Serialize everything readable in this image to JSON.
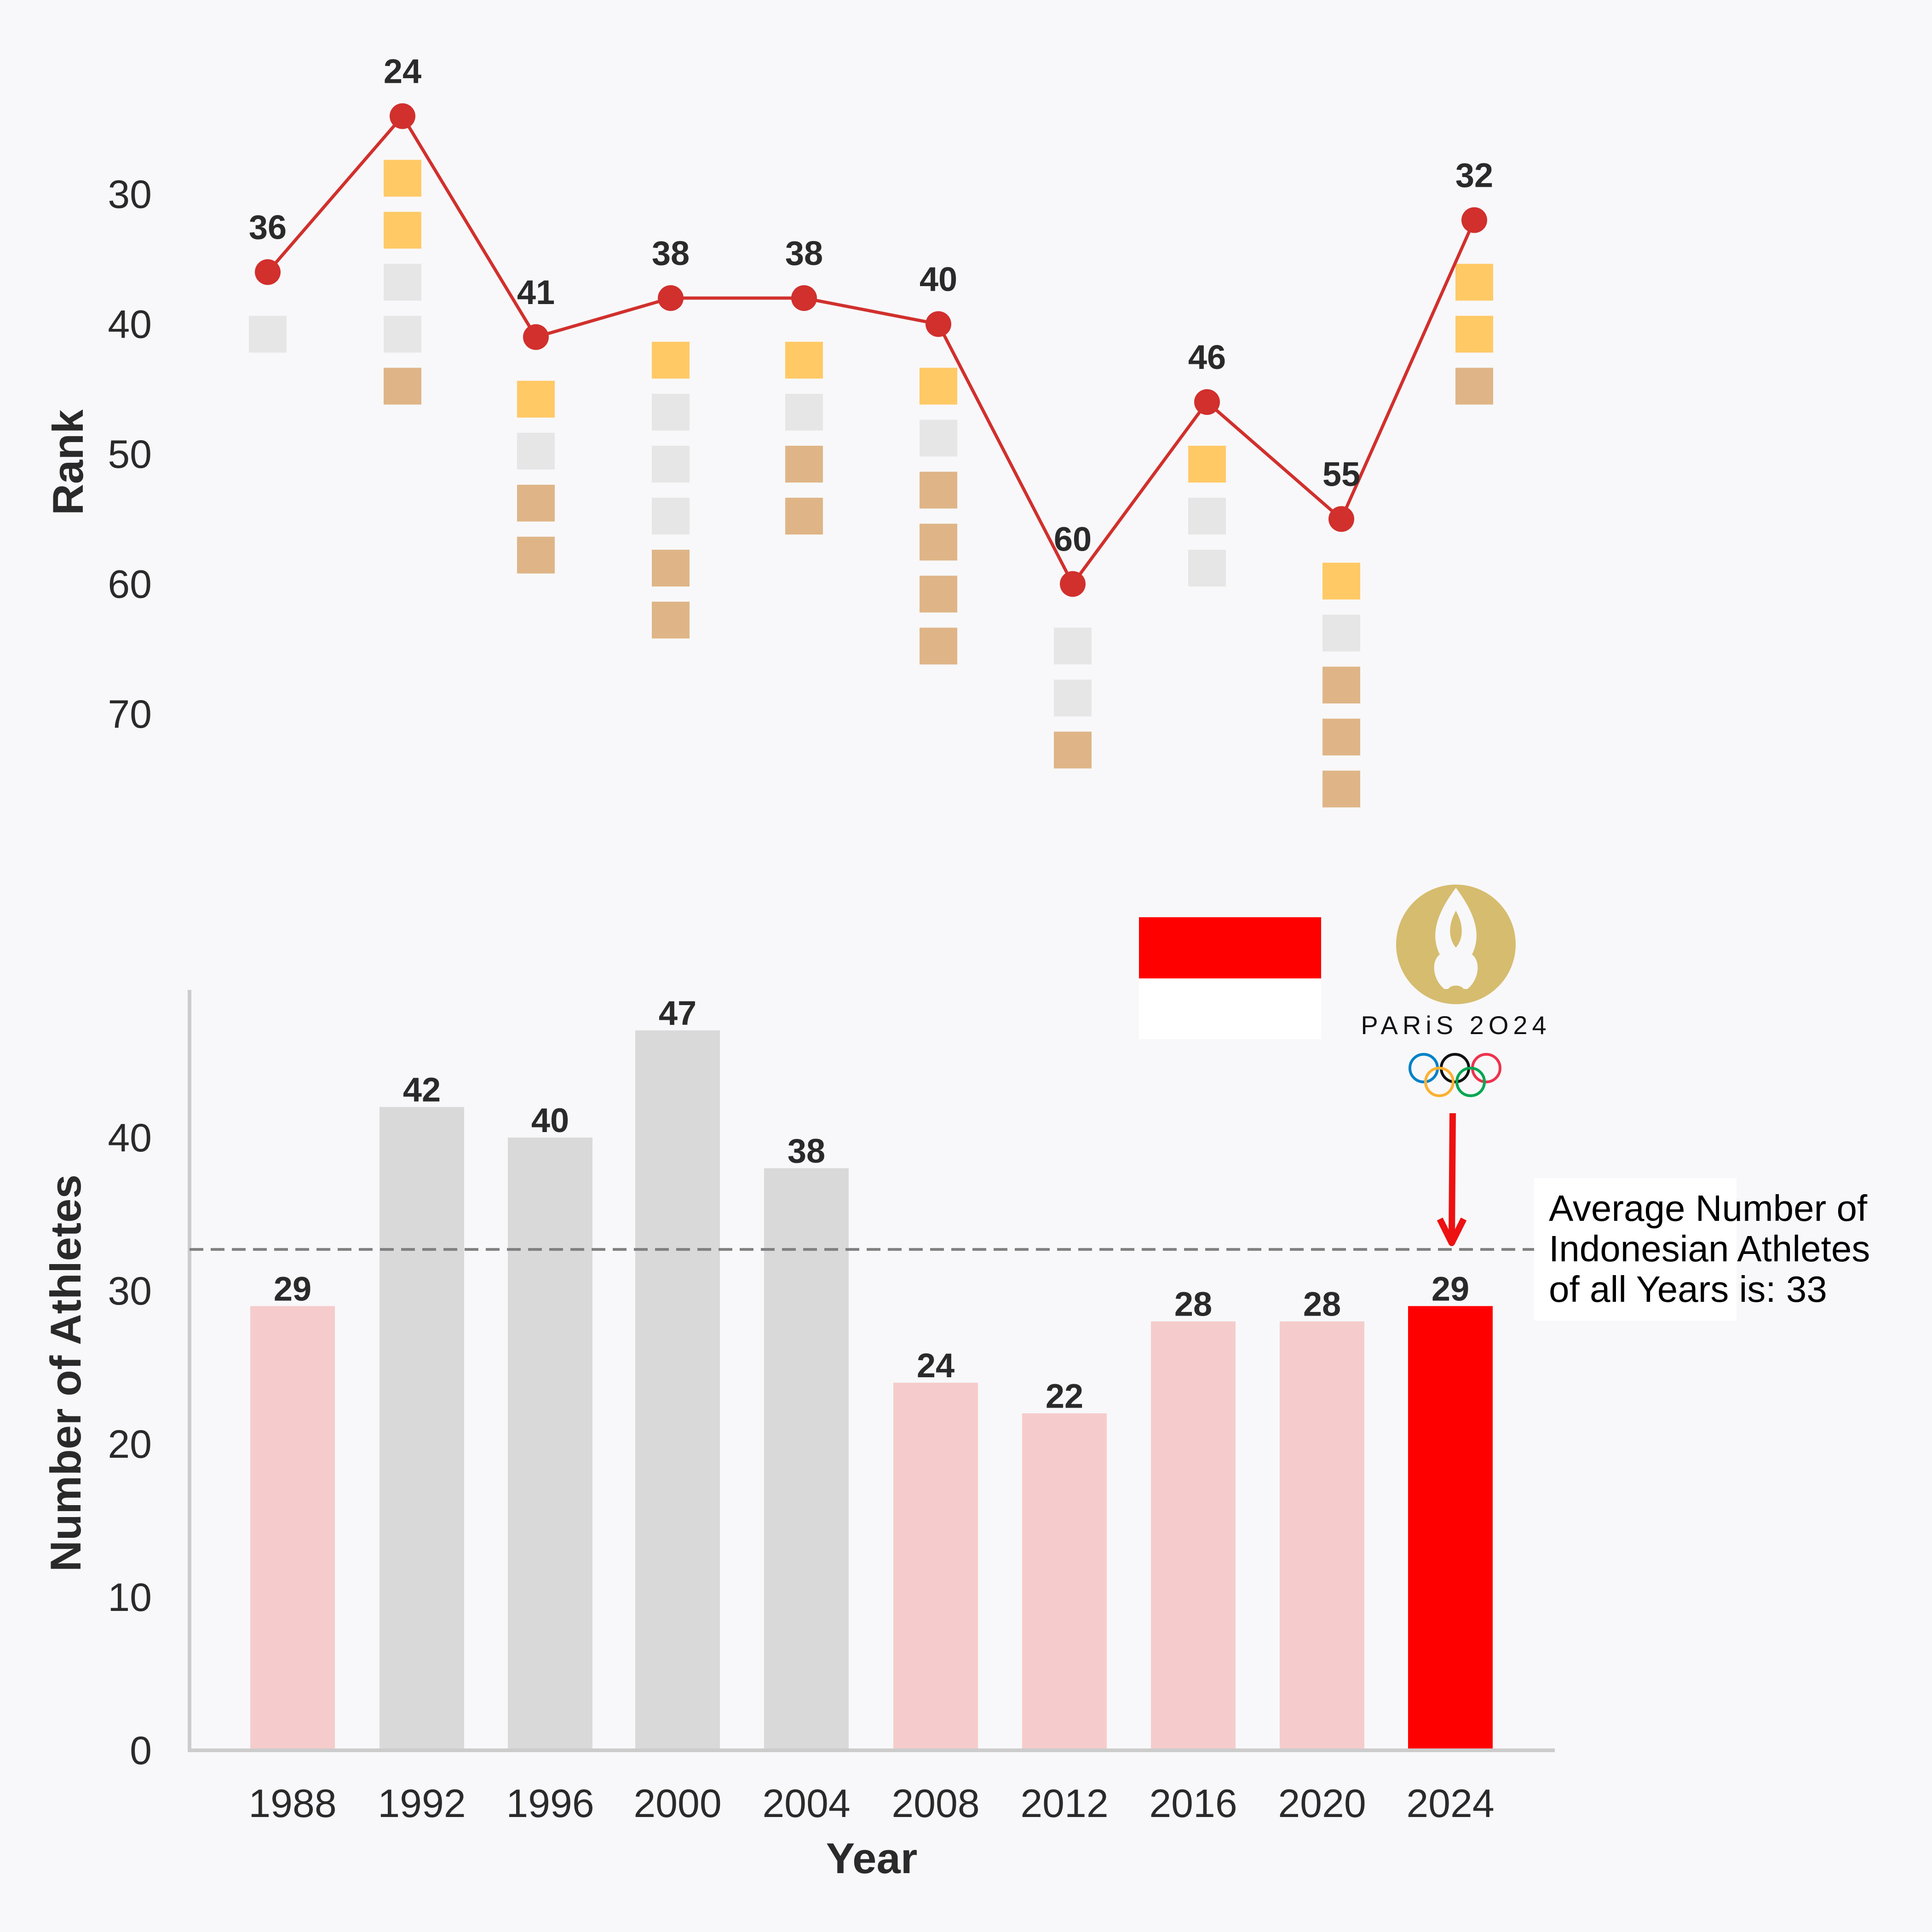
{
  "colors": {
    "background": "#f8f8fa",
    "rank_line": "#d1302d",
    "gold": "#ffc966",
    "silver": "#e6e6e6",
    "bronze": "#dfb587",
    "bar_above_avg": "#d9d9d9",
    "bar_below_avg": "#f5cccb",
    "bar_highlight": "#ff0000",
    "logo_gold": "#d6bc6f",
    "arrow": "#ee1111"
  },
  "chart_data": [
    {
      "type": "line",
      "title": "",
      "xlabel": "",
      "ylabel": "Rank",
      "y_inverted": true,
      "ylim": [
        15,
        80
      ],
      "y_ticks": [
        "30",
        "40",
        "50",
        "60",
        "70"
      ],
      "x": [
        "1988",
        "1992",
        "1996",
        "2000",
        "2004",
        "2008",
        "2012",
        "2016",
        "2020",
        "2024"
      ],
      "series": [
        {
          "values": [
            36,
            24,
            41,
            38,
            38,
            40,
            60,
            46,
            55,
            32
          ]
        }
      ],
      "data_labels": [
        "36",
        "24",
        "41",
        "38",
        "38",
        "40",
        "60",
        "46",
        "55",
        "32"
      ],
      "medals": [
        {
          "gold": 0,
          "silver": 1,
          "bronze": 0
        },
        {
          "gold": 2,
          "silver": 2,
          "bronze": 1
        },
        {
          "gold": 1,
          "silver": 1,
          "bronze": 2
        },
        {
          "gold": 1,
          "silver": 3,
          "bronze": 2
        },
        {
          "gold": 1,
          "silver": 1,
          "bronze": 2
        },
        {
          "gold": 1,
          "silver": 1,
          "bronze": 4
        },
        {
          "gold": 0,
          "silver": 2,
          "bronze": 1
        },
        {
          "gold": 1,
          "silver": 2,
          "bronze": 0
        },
        {
          "gold": 1,
          "silver": 1,
          "bronze": 3
        },
        {
          "gold": 2,
          "silver": 0,
          "bronze": 1
        }
      ],
      "grid": false
    },
    {
      "type": "bar",
      "title": "",
      "xlabel": "Year",
      "ylabel": "Number of Athletes",
      "ylim": [
        0,
        50
      ],
      "y_ticks": [
        "0",
        "10",
        "20",
        "30",
        "40"
      ],
      "categories": [
        "1988",
        "1992",
        "1996",
        "2000",
        "2004",
        "2008",
        "2012",
        "2016",
        "2020",
        "2024"
      ],
      "values": [
        29,
        42,
        40,
        47,
        38,
        24,
        22,
        28,
        28,
        29
      ],
      "data_labels": [
        "29",
        "42",
        "40",
        "47",
        "38",
        "24",
        "22",
        "28",
        "28",
        "29"
      ],
      "average": 32.7,
      "highlight": "2024",
      "grid": false
    }
  ],
  "annotation": {
    "lines": [
      "Average Number of",
      "Indonesian Athletes",
      "of all Years is: 33"
    ]
  },
  "logo": {
    "text": "PARiS 2O24"
  },
  "icons": [
    "indonesia-flag",
    "paris-2024-logo",
    "olympic-rings"
  ]
}
